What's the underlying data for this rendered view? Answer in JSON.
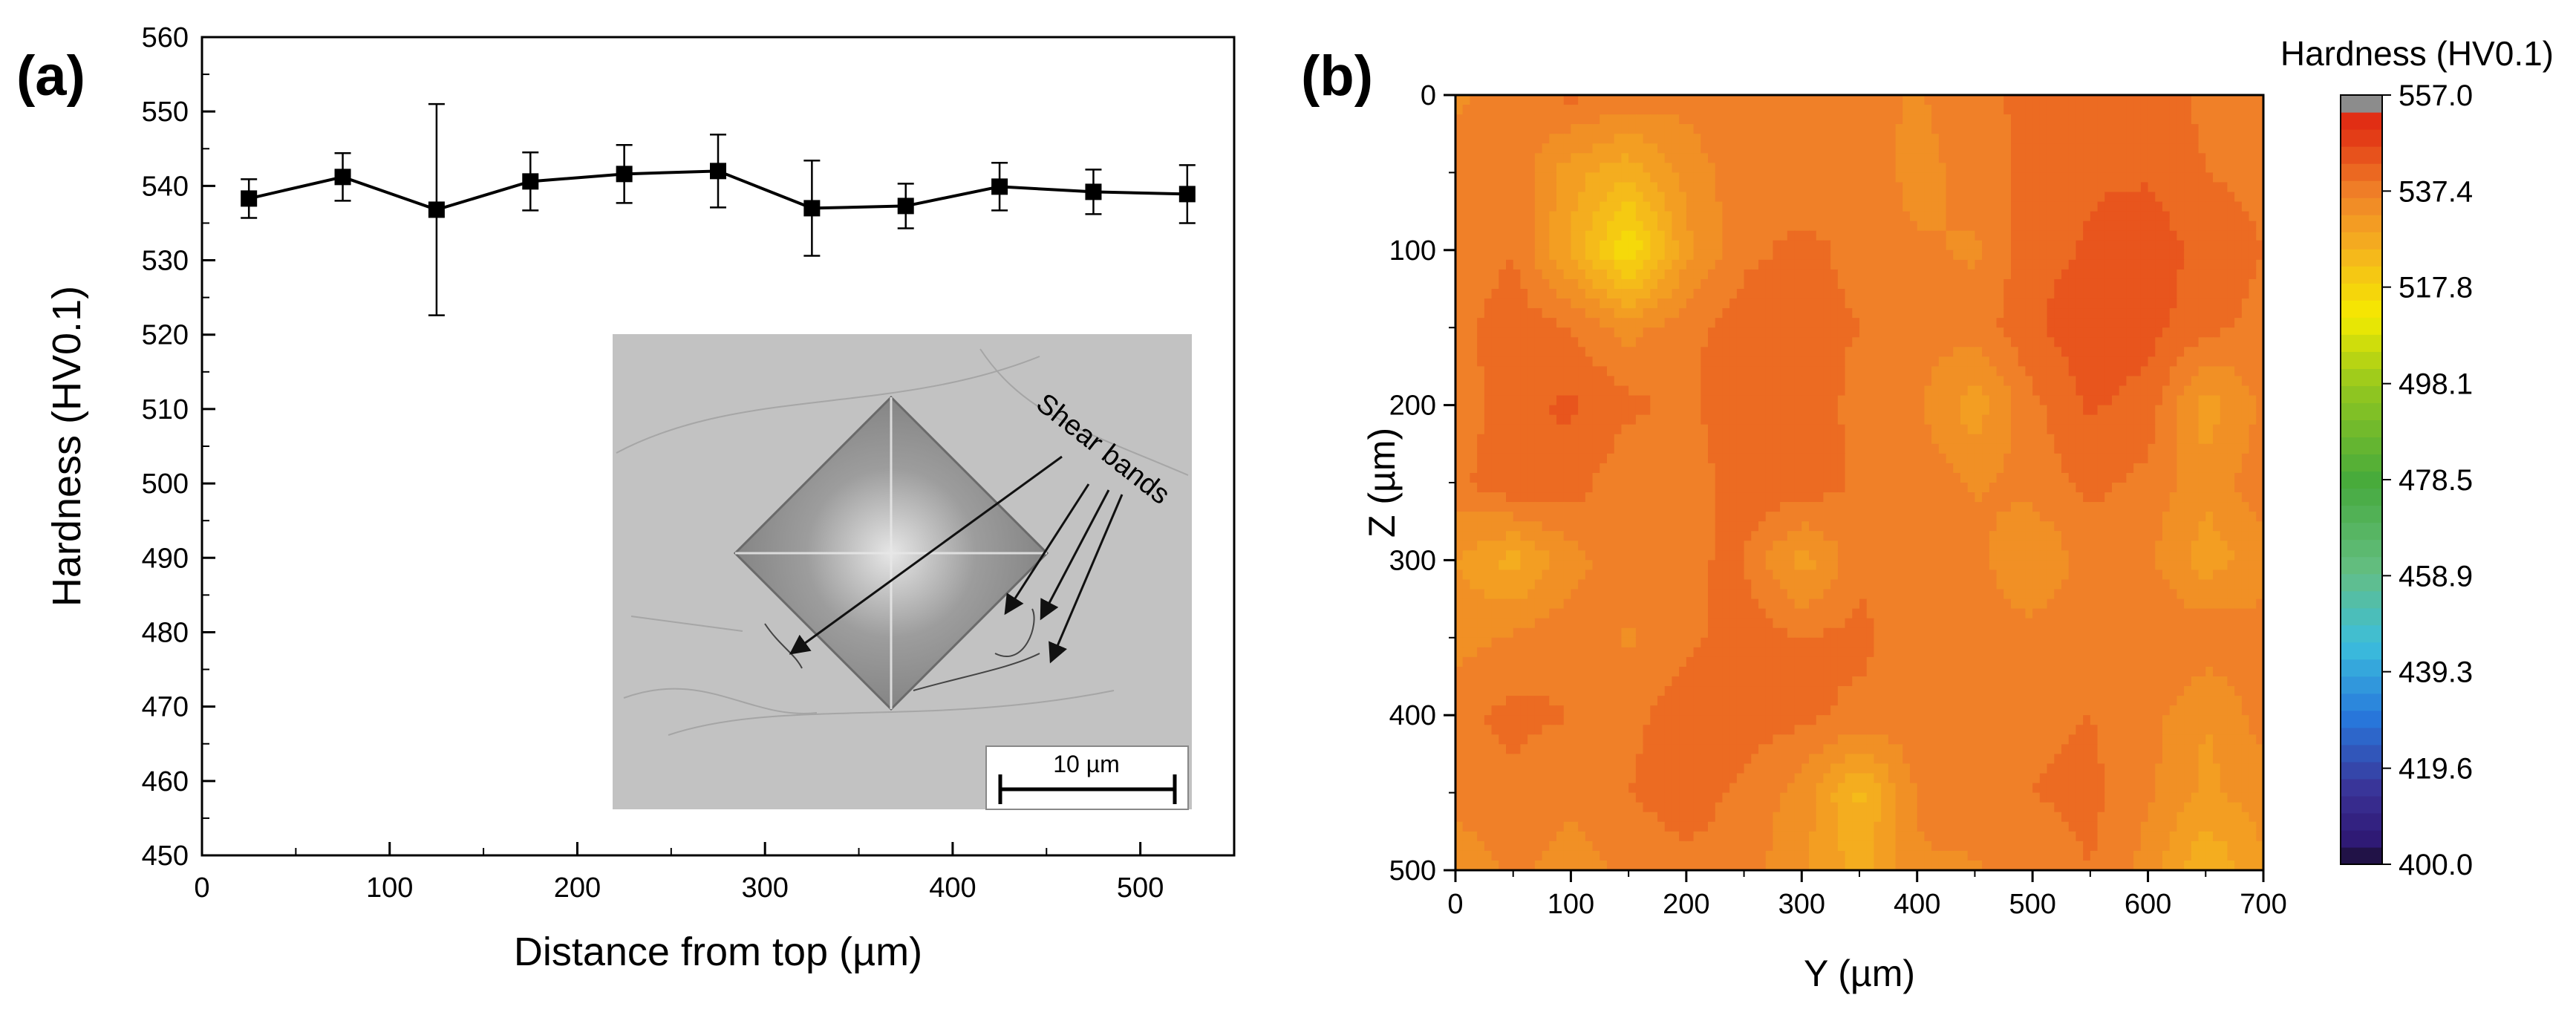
{
  "panel_a": {
    "label": "(a)",
    "chart_data": {
      "type": "line",
      "xlabel": "Distance from top (µm)",
      "ylabel": "Hardness (HV0.1)",
      "xlim": [
        0,
        550
      ],
      "ylim": [
        450,
        560
      ],
      "x_ticks": [
        0,
        100,
        200,
        300,
        400,
        500
      ],
      "y_ticks": [
        450,
        460,
        470,
        480,
        490,
        500,
        510,
        520,
        530,
        540,
        550,
        560
      ],
      "grid": false,
      "series": [
        {
          "marker": "square",
          "color": "#000000",
          "x": [
            25,
            75,
            125,
            175,
            225,
            275,
            325,
            375,
            425,
            475,
            525
          ],
          "y": [
            538.3,
            541.2,
            536.8,
            540.6,
            541.6,
            542.0,
            537.0,
            537.3,
            539.9,
            539.2,
            538.9
          ],
          "yerr": [
            2.6,
            3.2,
            14.2,
            3.9,
            3.9,
            4.9,
            6.4,
            3.0,
            3.2,
            3.0,
            3.9
          ]
        }
      ]
    },
    "inset": {
      "annotation": "Shear bands",
      "scale_bar": "10 µm"
    }
  },
  "panel_b": {
    "label": "(b)",
    "chart_data": {
      "type": "heatmap",
      "xlabel": "Y (µm)",
      "ylabel": "Z (µm)",
      "xlim": [
        0,
        700
      ],
      "ylim": [
        500,
        0
      ],
      "x_ticks": [
        0,
        100,
        200,
        300,
        400,
        500,
        600,
        700
      ],
      "y_ticks": [
        0,
        100,
        200,
        300,
        400,
        500
      ],
      "colorbar_title": "Hardness (HV0.1)",
      "colorbar_ticks": [
        "557.0",
        "537.4",
        "517.8",
        "498.1",
        "478.5",
        "458.9",
        "439.3",
        "419.6",
        "400.0"
      ],
      "colorbar_range": [
        400.0,
        557.0
      ],
      "x": [
        0,
        50,
        100,
        150,
        200,
        250,
        300,
        350,
        400,
        450,
        500,
        550,
        600,
        650,
        700
      ],
      "y": [
        0,
        50,
        100,
        150,
        200,
        250,
        300,
        350,
        400,
        450,
        500
      ],
      "z": [
        [
          535,
          537,
          540,
          538,
          537,
          539,
          538,
          537,
          535,
          538,
          540,
          539,
          541,
          538,
          537
        ],
        [
          537,
          538,
          530,
          526,
          533,
          538,
          537,
          538,
          534,
          537,
          540,
          542,
          542,
          539,
          538
        ],
        [
          536,
          539,
          528,
          514,
          531,
          538,
          540,
          538,
          536,
          535,
          541,
          543,
          545,
          541,
          539
        ],
        [
          538,
          541,
          539,
          534,
          538,
          541,
          540,
          539,
          537,
          537,
          542,
          545,
          544,
          540,
          538
        ],
        [
          536,
          542,
          543,
          540,
          538,
          542,
          541,
          538,
          536,
          530,
          538,
          543,
          541,
          530,
          536
        ],
        [
          538,
          542,
          541,
          536,
          537,
          541,
          542,
          538,
          538,
          535,
          537,
          540,
          538,
          533,
          538
        ],
        [
          532,
          527,
          534,
          538,
          539,
          539,
          530,
          538,
          538,
          537,
          532,
          537,
          536,
          530,
          534
        ],
        [
          534,
          536,
          538,
          535,
          538,
          541,
          539,
          540,
          537,
          536,
          537,
          538,
          539,
          538,
          537
        ],
        [
          538,
          540,
          539,
          538,
          541,
          541,
          540,
          538,
          538,
          539,
          538,
          539,
          537,
          532,
          537
        ],
        [
          537,
          538,
          536,
          539,
          541,
          538,
          534,
          524,
          536,
          538,
          539,
          540,
          536,
          531,
          534
        ],
        [
          533,
          536,
          534,
          536,
          538,
          537,
          533,
          527,
          535,
          535,
          537,
          539,
          534,
          525,
          531
        ]
      ]
    }
  }
}
